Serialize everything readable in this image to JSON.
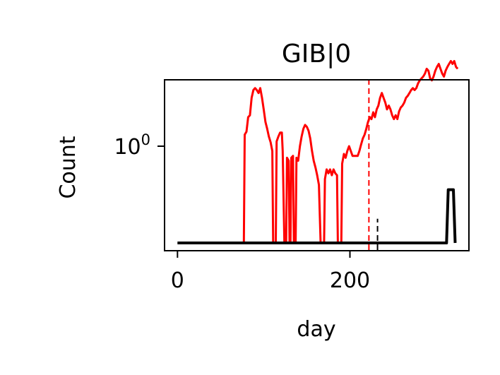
{
  "chart_data": {
    "type": "line",
    "title": "GIB|0",
    "xlabel": "day",
    "ylabel": "Count",
    "y_scale": "log",
    "xlim": [
      -15,
      338
    ],
    "x_ticks": [
      {
        "value": 0,
        "label": "0"
      },
      {
        "value": 200,
        "label": "200"
      }
    ],
    "y_ticks": [
      {
        "value": 1,
        "base": "10",
        "exponent": "0"
      }
    ],
    "grid": false,
    "legend": "none",
    "series": [
      {
        "color": "#ff0000",
        "style": "solid",
        "points": [
          [
            77,
            0
          ],
          [
            78,
            1.12
          ],
          [
            80,
            1.15
          ],
          [
            82,
            1.3
          ],
          [
            84,
            1.32
          ],
          [
            86,
            1.5
          ],
          [
            88,
            1.58
          ],
          [
            90,
            1.6
          ],
          [
            92,
            1.58
          ],
          [
            94,
            1.55
          ],
          [
            96,
            1.6
          ],
          [
            98,
            1.5
          ],
          [
            100,
            1.38
          ],
          [
            102,
            1.25
          ],
          [
            104,
            1.18
          ],
          [
            106,
            1.1
          ],
          [
            108,
            1.04
          ],
          [
            110,
            0.95
          ],
          [
            111,
            0
          ],
          [
            114,
            0
          ],
          [
            115,
            1.05
          ],
          [
            117,
            1.1
          ],
          [
            119,
            1.14
          ],
          [
            121,
            1.14
          ],
          [
            122,
            0.95
          ],
          [
            124,
            0
          ],
          [
            126,
            0
          ],
          [
            127,
            0.88
          ],
          [
            129,
            0.85
          ],
          [
            130,
            0
          ],
          [
            131,
            0
          ],
          [
            132,
            0.88
          ],
          [
            134,
            0.9
          ],
          [
            135,
            0
          ],
          [
            137,
            0
          ],
          [
            138,
            0.88
          ],
          [
            140,
            0.85
          ],
          [
            142,
            1.0
          ],
          [
            144,
            1.1
          ],
          [
            146,
            1.18
          ],
          [
            148,
            1.22
          ],
          [
            150,
            1.2
          ],
          [
            152,
            1.16
          ],
          [
            154,
            1.08
          ],
          [
            156,
            0.95
          ],
          [
            158,
            0.85
          ],
          [
            160,
            0.78
          ],
          [
            162,
            0.7
          ],
          [
            164,
            0.6
          ],
          [
            166,
            0
          ],
          [
            170,
            0
          ],
          [
            171,
            0.66
          ],
          [
            173,
            0.76
          ],
          [
            175,
            0.72
          ],
          [
            177,
            0.76
          ],
          [
            179,
            0.7
          ],
          [
            181,
            0.76
          ],
          [
            183,
            0.72
          ],
          [
            185,
            0.7
          ],
          [
            186,
            0
          ],
          [
            190,
            0
          ],
          [
            191,
            0.82
          ],
          [
            193,
            0.92
          ],
          [
            195,
            0.88
          ],
          [
            197,
            0.95
          ],
          [
            199,
            1.0
          ],
          [
            201,
            0.95
          ],
          [
            203,
            0.9
          ],
          [
            205,
            0.9
          ],
          [
            207,
            0.9
          ],
          [
            209,
            0.9
          ],
          [
            211,
            0.95
          ],
          [
            213,
            1.02
          ],
          [
            215,
            1.08
          ],
          [
            217,
            1.12
          ],
          [
            219,
            1.18
          ],
          [
            221,
            1.25
          ],
          [
            223,
            1.3
          ],
          [
            225,
            1.28
          ],
          [
            227,
            1.35
          ],
          [
            229,
            1.3
          ],
          [
            231,
            1.38
          ],
          [
            233,
            1.42
          ],
          [
            235,
            1.5
          ],
          [
            237,
            1.55
          ],
          [
            239,
            1.5
          ],
          [
            241,
            1.45
          ],
          [
            243,
            1.38
          ],
          [
            245,
            1.42
          ],
          [
            247,
            1.38
          ],
          [
            249,
            1.32
          ],
          [
            251,
            1.28
          ],
          [
            253,
            1.32
          ],
          [
            255,
            1.28
          ],
          [
            257,
            1.36
          ],
          [
            259,
            1.4
          ],
          [
            261,
            1.42
          ],
          [
            263,
            1.45
          ],
          [
            265,
            1.5
          ],
          [
            267,
            1.52
          ],
          [
            269,
            1.55
          ],
          [
            271,
            1.58
          ],
          [
            273,
            1.6
          ],
          [
            275,
            1.58
          ],
          [
            277,
            1.6
          ],
          [
            279,
            1.65
          ],
          [
            281,
            1.68
          ],
          [
            283,
            1.7
          ],
          [
            285,
            1.72
          ],
          [
            287,
            1.75
          ],
          [
            289,
            1.8
          ],
          [
            291,
            1.78
          ],
          [
            293,
            1.7
          ],
          [
            295,
            1.68
          ],
          [
            297,
            1.72
          ],
          [
            299,
            1.78
          ],
          [
            301,
            1.82
          ],
          [
            303,
            1.85
          ],
          [
            305,
            1.8
          ],
          [
            307,
            1.75
          ],
          [
            309,
            1.72
          ],
          [
            311,
            1.78
          ],
          [
            313,
            1.82
          ],
          [
            315,
            1.85
          ],
          [
            317,
            1.88
          ],
          [
            319,
            1.85
          ],
          [
            321,
            1.88
          ],
          [
            323,
            1.82
          ],
          [
            325,
            1.8
          ]
        ]
      },
      {
        "color": "#000000",
        "style": "solid",
        "points": [
          [
            0,
            0
          ],
          [
            312,
            0
          ],
          [
            314,
            0.55
          ],
          [
            320,
            0.55
          ],
          [
            322,
            0
          ]
        ]
      }
    ],
    "annotations": [
      {
        "type": "vline",
        "x": 222,
        "color": "#ff0000",
        "style": "dashed",
        "y_from": "bottom",
        "y_to": "top"
      },
      {
        "type": "vline",
        "x": 232,
        "color": "#000000",
        "style": "dashed",
        "y_from": "bottom",
        "y_to": 0.25
      }
    ]
  }
}
